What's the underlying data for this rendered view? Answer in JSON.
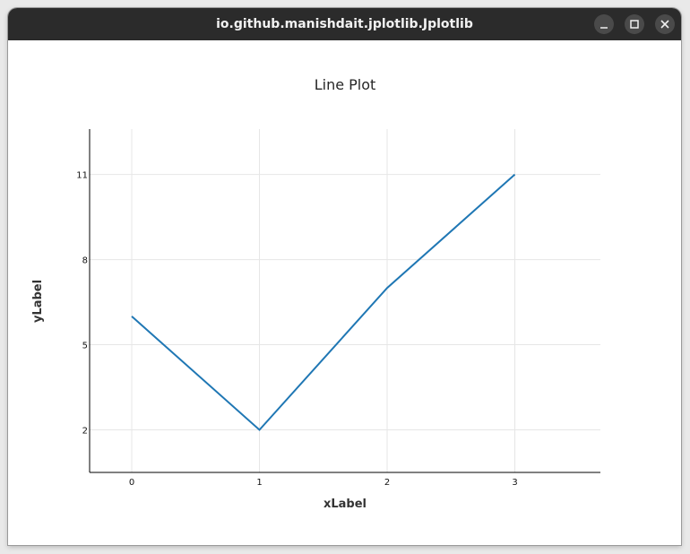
{
  "window": {
    "title": "io.github.manishdait.jplotlib.Jplotlib",
    "controls": {
      "minimize_icon": "minimize-icon",
      "maximize_icon": "maximize-icon",
      "close_icon": "close-icon"
    }
  },
  "chart_data": {
    "type": "line",
    "title": "Line Plot",
    "xlabel": "xLabel",
    "ylabel": "yLabel",
    "x": [
      0,
      1,
      2,
      3
    ],
    "series": [
      {
        "values": [
          6,
          2,
          7,
          11
        ],
        "color": "#1f77b4"
      }
    ],
    "xticks": [
      0,
      1,
      2,
      3
    ],
    "yticks": [
      2,
      5,
      8,
      11
    ],
    "xlim": [
      -0.33,
      3.67
    ],
    "ylim": [
      0.5,
      12.6
    ],
    "grid": true
  }
}
